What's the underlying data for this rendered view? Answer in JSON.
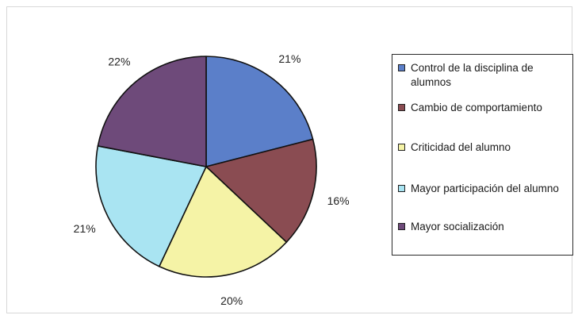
{
  "chart_data": {
    "type": "pie",
    "categories": [
      "Control de la disciplina de alumnos",
      "Cambio de comportamiento",
      "Criticidad del alumno",
      "Mayor participación del alumno",
      "Mayor socialización"
    ],
    "values": [
      21,
      16,
      20,
      21,
      22
    ],
    "labels": [
      "21%",
      "16%",
      "20%",
      "21%",
      "22%"
    ],
    "colors": [
      "#5b7fc9",
      "#8a4c52",
      "#f5f3a6",
      "#a9e4f2",
      "#6e4a7a"
    ],
    "legend_position": "right"
  }
}
